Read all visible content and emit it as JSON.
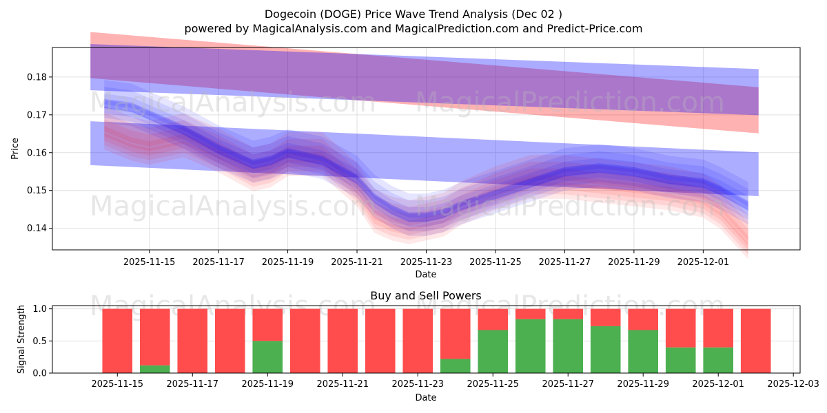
{
  "title": "Dogecoin (DOGE) Price Wave Trend Analysis (Dec 02 )",
  "subtitle": "powered by MagicalAnalysis.com and MagicalPrediction.com and Predict-Price.com",
  "watermarks": [
    "MagicalAnalysis.com",
    "MagicalPrediction.com"
  ],
  "colors": {
    "red": "#ff0000",
    "blue": "#0000ff",
    "purple": "#8a4fa8",
    "buy": "#4caf50",
    "sell": "#ff4d4d",
    "grid": "#e0e0e0"
  },
  "chart_data": [
    {
      "type": "area",
      "name": "price-wave",
      "xlabel": "Date",
      "ylabel": "Price",
      "x_ticks": [
        "2025-11-15",
        "2025-11-17",
        "2025-11-19",
        "2025-11-21",
        "2025-11-23",
        "2025-11-25",
        "2025-11-27",
        "2025-11-29",
        "2025-12-01"
      ],
      "y_ticks": [
        0.14,
        0.15,
        0.16,
        0.17,
        0.18
      ],
      "ylim": [
        0.1343,
        0.1878
      ],
      "xlim_days": [
        -2.8,
        18.8
      ],
      "x_start_date": "2025-11-15",
      "grid": true,
      "long_bands": [
        {
          "color": "red",
          "x": [
            -1.7,
            17.6
          ],
          "center": [
            0.1858,
            0.1712
          ],
          "half_width": 0.0061
        },
        {
          "color": "blue",
          "x": [
            -1.7,
            17.6
          ],
          "center": [
            0.1826,
            0.176
          ],
          "half_width": 0.0061
        }
      ],
      "wave_days": [
        -1.3,
        -0.5,
        0,
        0.5,
        1,
        2,
        3,
        3.5,
        4,
        5,
        6,
        6.5,
        7,
        7.5,
        8,
        8.5,
        9,
        10,
        11,
        12,
        13,
        14,
        15,
        16,
        16.5,
        17.3
      ],
      "wave_price": [
        0.166,
        0.163,
        0.162,
        0.163,
        0.164,
        0.16,
        0.155,
        0.156,
        0.159,
        0.159,
        0.151,
        0.144,
        0.142,
        0.141,
        0.142,
        0.143,
        0.146,
        0.15,
        0.153,
        0.153,
        0.152,
        0.151,
        0.15,
        0.148,
        0.145,
        0.137
      ],
      "wave_blue_price": [
        0.173,
        0.172,
        0.17,
        0.168,
        0.166,
        0.161,
        0.157,
        0.158,
        0.16,
        0.158,
        0.153,
        0.148,
        0.145,
        0.143,
        0.143,
        0.144,
        0.146,
        0.149,
        0.152,
        0.155,
        0.156,
        0.155,
        0.153,
        0.152,
        0.15,
        0.146
      ],
      "regression_band": {
        "color": "blue",
        "x": [
          -1.7,
          17.6
        ],
        "center": [
          0.1625,
          0.1543
        ],
        "half_width": 0.0058
      }
    },
    {
      "type": "bar",
      "name": "buy-sell-powers",
      "title": "Buy and Sell Powers",
      "xlabel": "Date",
      "ylabel": "Signal Strength",
      "x_ticks": [
        "2025-11-15",
        "2025-11-17",
        "2025-11-19",
        "2025-11-21",
        "2025-11-23",
        "2025-11-25",
        "2025-11-27",
        "2025-11-29",
        "2025-12-01",
        "2025-12-03"
      ],
      "y_ticks": [
        0.0,
        0.5,
        1.0
      ],
      "ylim": [
        0,
        1.05
      ],
      "categories": [
        "2025-11-15",
        "2025-11-16",
        "2025-11-17",
        "2025-11-18",
        "2025-11-19",
        "2025-11-20",
        "2025-11-21",
        "2025-11-22",
        "2025-11-23",
        "2025-11-24",
        "2025-11-25",
        "2025-11-26",
        "2025-11-27",
        "2025-11-28",
        "2025-11-29",
        "2025-11-30",
        "2025-12-01",
        "2025-12-02"
      ],
      "series": [
        {
          "name": "Buy",
          "color": "buy",
          "values": [
            0.0,
            0.12,
            0.0,
            0.0,
            0.5,
            0.0,
            0.0,
            0.0,
            0.0,
            0.22,
            0.67,
            0.84,
            0.84,
            0.73,
            0.67,
            0.4,
            0.4,
            0.0
          ]
        },
        {
          "name": "Sell",
          "color": "sell",
          "values": [
            1.0,
            0.88,
            1.0,
            1.0,
            0.5,
            1.0,
            1.0,
            1.0,
            1.0,
            0.78,
            0.33,
            0.16,
            0.16,
            0.27,
            0.33,
            0.6,
            0.6,
            1.0
          ]
        }
      ]
    }
  ]
}
